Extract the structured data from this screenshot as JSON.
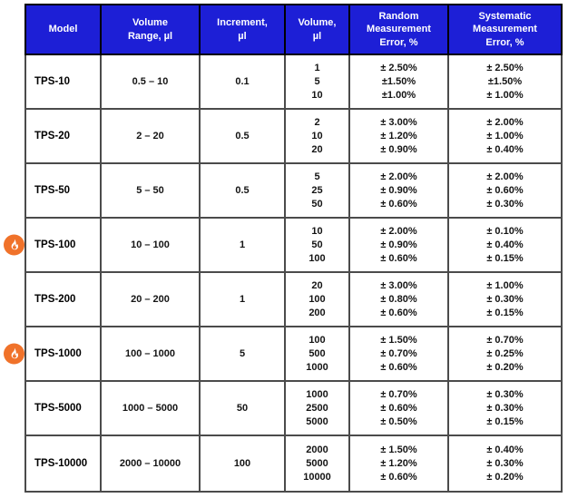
{
  "title": "Pipette model specifications table",
  "colors": {
    "header_bg": "#1d1fd6",
    "header_text": "#ffffff",
    "header_border": "#000000",
    "grid_line": "#4b4b4b",
    "body_text": "#141414",
    "flame_circle": "#f0722a",
    "flame_glyph": "#ffffff"
  },
  "icons": {
    "flame": "flame-icon"
  },
  "table": {
    "columns": [
      {
        "id": "model",
        "label": "Model"
      },
      {
        "id": "range",
        "label": "Volume\nRange, µl"
      },
      {
        "id": "increment",
        "label": "Increment,\nµl"
      },
      {
        "id": "volume",
        "label": "Volume,\nµl"
      },
      {
        "id": "random",
        "label": "Random\nMeasurement\nError, %"
      },
      {
        "id": "systematic",
        "label": "Systematic\nMeasurement\nError, %"
      }
    ],
    "rows": [
      {
        "model": "TPS-10",
        "range": "0.5 – 10",
        "increment": "0.1",
        "flame": false,
        "volumes": [
          "1",
          "5",
          "10"
        ],
        "random": [
          "± 2.50%",
          "±1.50%",
          "±1.00%"
        ],
        "systematic": [
          "± 2.50%",
          "±1.50%",
          "± 1.00%"
        ]
      },
      {
        "model": "TPS-20",
        "range": "2 – 20",
        "increment": "0.5",
        "flame": false,
        "volumes": [
          "2",
          "10",
          "20"
        ],
        "random": [
          "± 3.00%",
          "± 1.20%",
          "± 0.90%"
        ],
        "systematic": [
          "± 2.00%",
          "± 1.00%",
          "± 0.40%"
        ]
      },
      {
        "model": "TPS-50",
        "range": "5 – 50",
        "increment": "0.5",
        "flame": false,
        "volumes": [
          "5",
          "25",
          "50"
        ],
        "random": [
          "± 2.00%",
          "± 0.90%",
          "± 0.60%"
        ],
        "systematic": [
          "± 2.00%",
          "± 0.60%",
          "± 0.30%"
        ]
      },
      {
        "model": "TPS-100",
        "range": "10 – 100",
        "increment": "1",
        "flame": true,
        "volumes": [
          "10",
          "50",
          "100"
        ],
        "random": [
          "± 2.00%",
          "± 0.90%",
          "± 0.60%"
        ],
        "systematic": [
          "± 0.10%",
          "± 0.40%",
          "± 0.15%"
        ]
      },
      {
        "model": "TPS-200",
        "range": "20 – 200",
        "increment": "1",
        "flame": false,
        "volumes": [
          "20",
          "100",
          "200"
        ],
        "random": [
          "± 3.00%",
          "± 0.80%",
          "± 0.60%"
        ],
        "systematic": [
          "± 1.00%",
          "± 0.30%",
          "± 0.15%"
        ]
      },
      {
        "model": "TPS-1000",
        "range": "100 – 1000",
        "increment": "5",
        "flame": true,
        "volumes": [
          "100",
          "500",
          "1000"
        ],
        "random": [
          "± 1.50%",
          "± 0.70%",
          "± 0.60%"
        ],
        "systematic": [
          "± 0.70%",
          "± 0.25%",
          "± 0.20%"
        ]
      },
      {
        "model": "TPS-5000",
        "range": "1000 – 5000",
        "increment": "50",
        "flame": false,
        "volumes": [
          "1000",
          "2500",
          "5000"
        ],
        "random": [
          "± 0.70%",
          "± 0.60%",
          "± 0.50%"
        ],
        "systematic": [
          "± 0.30%",
          "± 0.30%",
          "± 0.15%"
        ]
      },
      {
        "model": "TPS-10000",
        "range": "2000 – 10000",
        "increment": "100",
        "flame": false,
        "volumes": [
          "2000",
          "5000",
          "10000"
        ],
        "random": [
          "± 1.50%",
          "± 1.20%",
          "± 0.60%"
        ],
        "systematic": [
          "± 0.40%",
          "± 0.30%",
          "± 0.20%"
        ]
      }
    ]
  }
}
